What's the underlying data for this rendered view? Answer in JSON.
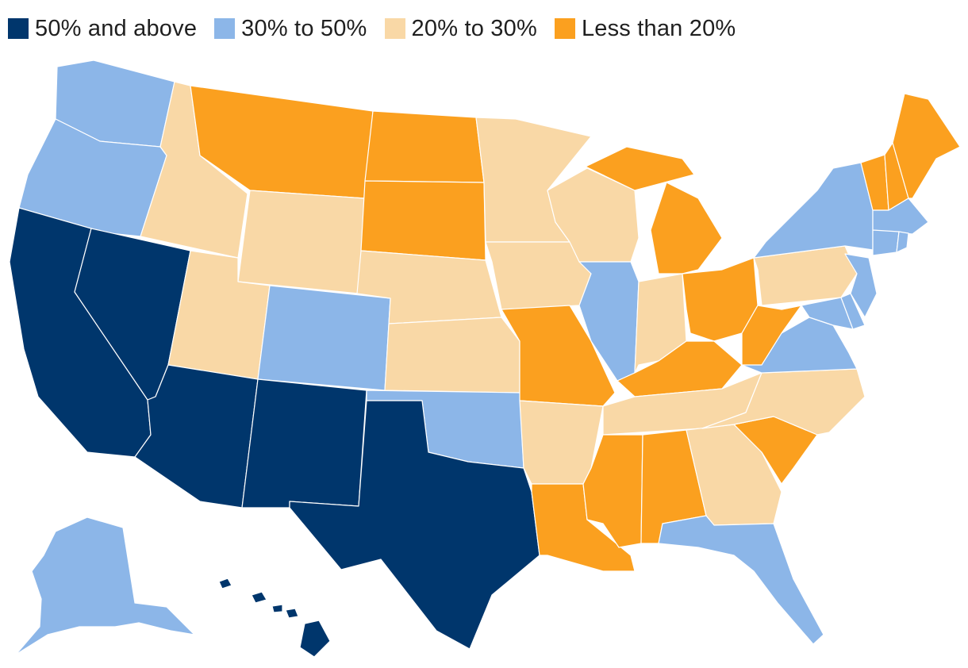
{
  "legend": {
    "items": [
      {
        "label": "50% and above",
        "color": "#00366c"
      },
      {
        "label": "30% to 50%",
        "color": "#8cb6e8"
      },
      {
        "label": "20% to 30%",
        "color": "#f9d8a6"
      },
      {
        "label": "Less than 20%",
        "color": "#fba01f"
      }
    ]
  },
  "map": {
    "categories": {
      "high": "50% and above",
      "mid": "30% to 50%",
      "lowmid": "20% to 30%",
      "low": "Less than 20%"
    },
    "states": {
      "WA": "mid",
      "OR": "mid",
      "CA": "high",
      "NV": "high",
      "ID": "lowmid",
      "MT": "low",
      "WY": "lowmid",
      "UT": "lowmid",
      "AZ": "high",
      "CO": "mid",
      "NM": "high",
      "ND": "low",
      "SD": "low",
      "NE": "lowmid",
      "KS": "lowmid",
      "OK": "mid",
      "TX": "high",
      "MN": "lowmid",
      "IA": "lowmid",
      "MO": "low",
      "AR": "lowmid",
      "LA": "low",
      "WI": "lowmid",
      "IL": "mid",
      "MI": "low",
      "IN": "lowmid",
      "OH": "low",
      "KY": "low",
      "TN": "lowmid",
      "MS": "low",
      "AL": "low",
      "GA": "lowmid",
      "FL": "mid",
      "SC": "low",
      "NC": "lowmid",
      "VA": "mid",
      "WV": "low",
      "PA": "lowmid",
      "NY": "mid",
      "VT": "low",
      "NH": "low",
      "ME": "low",
      "MA": "mid",
      "CT": "mid",
      "RI": "mid",
      "NJ": "mid",
      "DE": "mid",
      "MD": "mid",
      "AK": "mid",
      "HI": "high"
    }
  }
}
